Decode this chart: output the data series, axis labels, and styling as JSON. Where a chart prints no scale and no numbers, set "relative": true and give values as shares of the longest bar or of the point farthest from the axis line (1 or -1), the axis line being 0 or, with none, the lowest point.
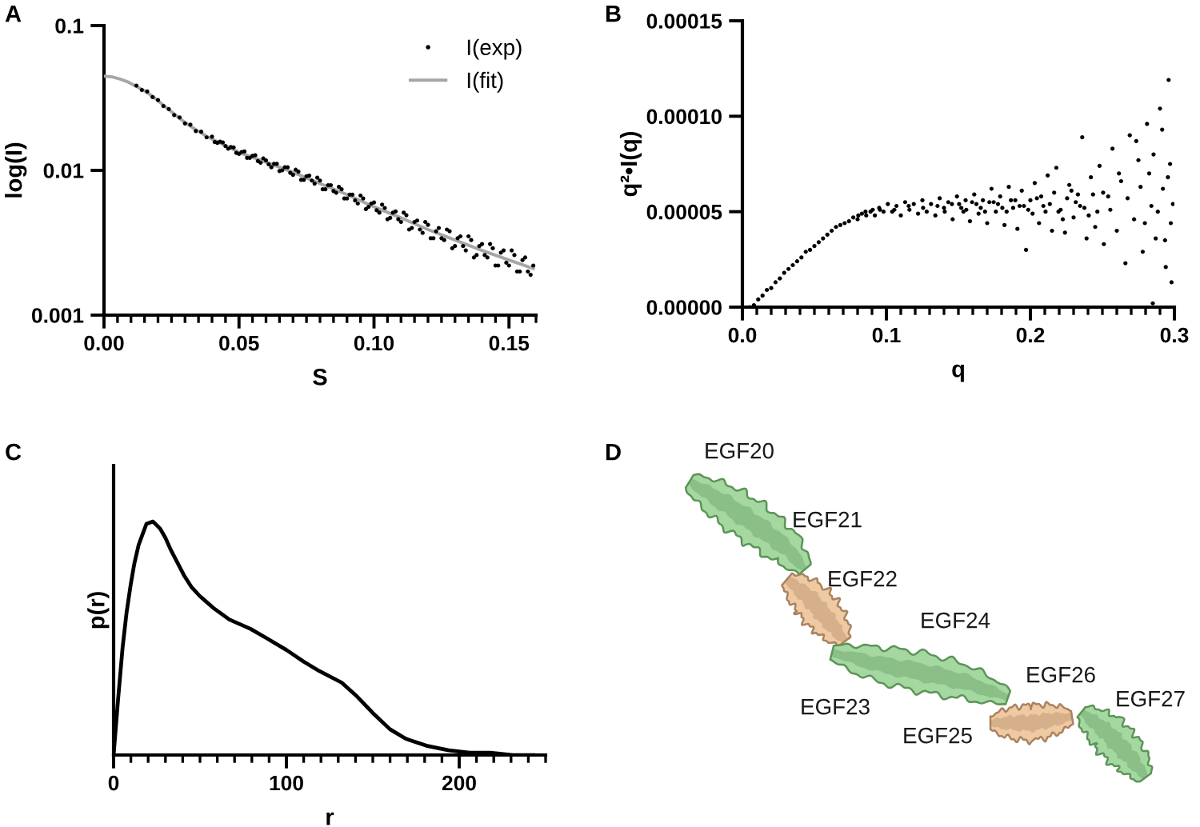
{
  "chart_data": [
    {
      "type": "scatter",
      "title": "A",
      "xlabel": "S",
      "ylabel": "log(I)",
      "log": "y",
      "legend": "top right",
      "xlim": [
        0,
        0.16
      ],
      "ylim": [
        0.001,
        0.1
      ],
      "xticks": [
        {
          "value": 0,
          "label": "0.00"
        },
        {
          "value": 0.005,
          "label": null
        },
        {
          "value": 0.01,
          "label": null
        },
        {
          "value": 0.015,
          "label": null
        },
        {
          "value": 0.02,
          "label": null
        },
        {
          "value": 0.025,
          "label": null
        },
        {
          "value": 0.03,
          "label": null
        },
        {
          "value": 0.035,
          "label": null
        },
        {
          "value": 0.04,
          "label": null
        },
        {
          "value": 0.045,
          "label": null
        },
        {
          "value": 0.05,
          "label": "0.05"
        },
        {
          "value": 0.055,
          "label": null
        },
        {
          "value": 0.06,
          "label": null
        },
        {
          "value": 0.065,
          "label": null
        },
        {
          "value": 0.07,
          "label": null
        },
        {
          "value": 0.075,
          "label": null
        },
        {
          "value": 0.08,
          "label": null
        },
        {
          "value": 0.085,
          "label": null
        },
        {
          "value": 0.09,
          "label": null
        },
        {
          "value": 0.095,
          "label": null
        },
        {
          "value": 0.1,
          "label": "0.10"
        },
        {
          "value": 0.105,
          "label": null
        },
        {
          "value": 0.11,
          "label": null
        },
        {
          "value": 0.115,
          "label": null
        },
        {
          "value": 0.12,
          "label": null
        },
        {
          "value": 0.125,
          "label": null
        },
        {
          "value": 0.13,
          "label": null
        },
        {
          "value": 0.135,
          "label": null
        },
        {
          "value": 0.14,
          "label": null
        },
        {
          "value": 0.145,
          "label": null
        },
        {
          "value": 0.15,
          "label": "0.15"
        },
        {
          "value": 0.155,
          "label": null
        },
        {
          "value": 0.16,
          "label": null
        }
      ],
      "yticks": [
        0.001,
        0.01,
        0.1
      ],
      "series": [
        {
          "name": "I(exp)",
          "type": "scatter",
          "color": "#000000",
          "marker": "circle",
          "x": [
            0.012,
            0.014,
            0.016,
            0.018,
            0.02,
            0.022,
            0.024,
            0.026,
            0.028,
            0.03,
            0.032,
            0.034,
            0.036,
            0.038,
            0.04,
            0.042,
            0.044,
            0.046,
            0.048,
            0.05,
            0.052,
            0.054,
            0.056,
            0.058,
            0.06,
            0.062,
            0.064,
            0.066,
            0.068,
            0.07,
            0.072,
            0.074,
            0.076,
            0.078,
            0.08,
            0.082,
            0.084,
            0.086,
            0.088,
            0.09,
            0.092,
            0.094,
            0.096,
            0.098,
            0.1,
            0.102,
            0.104,
            0.106,
            0.108,
            0.11,
            0.112,
            0.114,
            0.116,
            0.118,
            0.12,
            0.122,
            0.124,
            0.126,
            0.128,
            0.13,
            0.132,
            0.134,
            0.136,
            0.138,
            0.14,
            0.142,
            0.144,
            0.146,
            0.148,
            0.15,
            0.152,
            0.154,
            0.156,
            0.158,
            0.159,
            0.041,
            0.043,
            0.045,
            0.047,
            0.049,
            0.051,
            0.053,
            0.055,
            0.057,
            0.059,
            0.061,
            0.063,
            0.065,
            0.067,
            0.069,
            0.071,
            0.073,
            0.075,
            0.077,
            0.079,
            0.081,
            0.083,
            0.085,
            0.087,
            0.089,
            0.091,
            0.093,
            0.095,
            0.097,
            0.099,
            0.101,
            0.103,
            0.105,
            0.107,
            0.109,
            0.111,
            0.113,
            0.115,
            0.117,
            0.119,
            0.121,
            0.123,
            0.125,
            0.127,
            0.129,
            0.131,
            0.133,
            0.135,
            0.137,
            0.139,
            0.141,
            0.143,
            0.145,
            0.147,
            0.149,
            0.151,
            0.153,
            0.155,
            0.157
          ],
          "values": [
            0.0385,
            0.0359,
            0.0351,
            0.0321,
            0.0306,
            0.0278,
            0.0265,
            0.0241,
            0.0232,
            0.0211,
            0.0207,
            0.0187,
            0.0185,
            0.0169,
            0.0171,
            0.0155,
            0.0156,
            0.0141,
            0.0144,
            0.013,
            0.0135,
            0.0122,
            0.0127,
            0.0113,
            0.0117,
            0.0105,
            0.0111,
            0.01,
            0.0105,
            0.0093,
            0.0098,
            0.0086,
            0.0092,
            0.0081,
            0.0085,
            0.0074,
            0.0079,
            0.007,
            0.0074,
            0.0064,
            0.0068,
            0.0059,
            0.0064,
            0.0056,
            0.006,
            0.0051,
            0.0055,
            0.0047,
            0.0052,
            0.0044,
            0.0049,
            0.004,
            0.0045,
            0.0037,
            0.0042,
            0.0034,
            0.004,
            0.0033,
            0.0038,
            0.003,
            0.0035,
            0.0028,
            0.0033,
            0.0026,
            0.0031,
            0.0025,
            0.0029,
            0.0022,
            0.0028,
            0.0022,
            0.0026,
            0.002,
            0.0025,
            0.0019,
            0.0022,
            0.0157,
            0.0158,
            0.0147,
            0.0145,
            0.0132,
            0.0134,
            0.0122,
            0.0126,
            0.0116,
            0.0121,
            0.011,
            0.0111,
            0.0099,
            0.0105,
            0.0096,
            0.0101,
            0.0086,
            0.0091,
            0.0085,
            0.0089,
            0.0074,
            0.0079,
            0.0072,
            0.0077,
            0.0064,
            0.0068,
            0.0062,
            0.0067,
            0.0054,
            0.0059,
            0.0053,
            0.0058,
            0.0046,
            0.0051,
            0.0046,
            0.0051,
            0.0039,
            0.0044,
            0.0039,
            0.0044,
            0.0034,
            0.0038,
            0.0034,
            0.0039,
            0.0029,
            0.0034,
            0.003,
            0.0035,
            0.0025,
            0.003,
            0.0026,
            0.0031,
            0.0022,
            0.0027,
            0.0023,
            0.0028,
            0.002,
            0.0024,
            0.002
          ]
        },
        {
          "name": "I(fit)",
          "type": "line",
          "color": "#a6a6a6",
          "marker": "none",
          "x": [
            0,
            0.003,
            0.006,
            0.009,
            0.012,
            0.015,
            0.018,
            0.021,
            0.024,
            0.027,
            0.03,
            0.034,
            0.038,
            0.042,
            0.046,
            0.05,
            0.06,
            0.07,
            0.08,
            0.09,
            0.1,
            0.11,
            0.12,
            0.13,
            0.14,
            0.15,
            0.159
          ],
          "values": [
            0.0447,
            0.0442,
            0.0427,
            0.0407,
            0.038,
            0.0355,
            0.0324,
            0.0292,
            0.0263,
            0.0237,
            0.0214,
            0.0191,
            0.0172,
            0.0158,
            0.0145,
            0.0133,
            0.0114,
            0.0097,
            0.0081,
            0.0068,
            0.0056,
            0.0047,
            0.0039,
            0.0033,
            0.0028,
            0.0024,
            0.0021
          ]
        }
      ]
    },
    {
      "type": "scatter",
      "title": "B",
      "xlabel": "q",
      "ylabel": "q²•I(q)",
      "xlim": [
        0,
        0.3
      ],
      "ylim": [
        0,
        0.00015
      ],
      "xticks": [
        {
          "value": 0,
          "label": "0.0"
        },
        {
          "value": 0.01,
          "label": null
        },
        {
          "value": 0.02,
          "label": null
        },
        {
          "value": 0.03,
          "label": null
        },
        {
          "value": 0.04,
          "label": null
        },
        {
          "value": 0.05,
          "label": null
        },
        {
          "value": 0.06,
          "label": null
        },
        {
          "value": 0.07,
          "label": null
        },
        {
          "value": 0.08,
          "label": null
        },
        {
          "value": 0.09,
          "label": null
        },
        {
          "value": 0.1,
          "label": "0.1"
        },
        {
          "value": 0.11,
          "label": null
        },
        {
          "value": 0.12,
          "label": null
        },
        {
          "value": 0.13,
          "label": null
        },
        {
          "value": 0.14,
          "label": null
        },
        {
          "value": 0.15,
          "label": null
        },
        {
          "value": 0.16,
          "label": null
        },
        {
          "value": 0.17,
          "label": null
        },
        {
          "value": 0.18,
          "label": null
        },
        {
          "value": 0.19,
          "label": null
        },
        {
          "value": 0.2,
          "label": "0.2"
        },
        {
          "value": 0.21,
          "label": null
        },
        {
          "value": 0.22,
          "label": null
        },
        {
          "value": 0.23,
          "label": null
        },
        {
          "value": 0.24,
          "label": null
        },
        {
          "value": 0.25,
          "label": null
        },
        {
          "value": 0.26,
          "label": null
        },
        {
          "value": 0.27,
          "label": null
        },
        {
          "value": 0.28,
          "label": null
        },
        {
          "value": 0.29,
          "label": null
        },
        {
          "value": 0.3,
          "label": "0.3"
        }
      ],
      "yticks": [
        {
          "value": 0,
          "label": "0.00000"
        },
        {
          "value": 5e-05,
          "label": "0.00005"
        },
        {
          "value": 0.0001,
          "label": "0.00010"
        },
        {
          "value": 0.00015,
          "label": "0.00015"
        }
      ],
      "series": [
        {
          "color": "#000000",
          "marker": "circle",
          "x": [
            0.005,
            0.008,
            0.011,
            0.014,
            0.017,
            0.02,
            0.023,
            0.026,
            0.029,
            0.032,
            0.035,
            0.038,
            0.041,
            0.044,
            0.047,
            0.05,
            0.053,
            0.056,
            0.059,
            0.062,
            0.065,
            0.068,
            0.071,
            0.074,
            0.077,
            0.08,
            0.083,
            0.086,
            0.089,
            0.092,
            0.095,
            0.098,
            0.101,
            0.104,
            0.107,
            0.11,
            0.113,
            0.116,
            0.119,
            0.122,
            0.125,
            0.128,
            0.131,
            0.134,
            0.137,
            0.14,
            0.143,
            0.146,
            0.149,
            0.152,
            0.155,
            0.158,
            0.161,
            0.164,
            0.167,
            0.17,
            0.173,
            0.176,
            0.179,
            0.182,
            0.185,
            0.188,
            0.191,
            0.194,
            0.197,
            0.2,
            0.203,
            0.206,
            0.209,
            0.212,
            0.215,
            0.218,
            0.221,
            0.224,
            0.227,
            0.23,
            0.233,
            0.236,
            0.239,
            0.242,
            0.245,
            0.248,
            0.251,
            0.254,
            0.257,
            0.26,
            0.263,
            0.266,
            0.269,
            0.272,
            0.275,
            0.278,
            0.281,
            0.284,
            0.285,
            0.287,
            0.29,
            0.292,
            0.294,
            0.296,
            0.297,
            0.298,
            0.299,
            0.1505,
            0.1535,
            0.1595,
            0.1655,
            0.1715,
            0.1775,
            0.1835,
            0.1895,
            0.1955,
            0.2015,
            0.2075,
            0.2135,
            0.2195,
            0.2255,
            0.2315,
            0.2375,
            0.2435,
            0.2465,
            0.2505,
            0.2555,
            0.2615,
            0.2675,
            0.2735,
            0.2765,
            0.2795,
            0.2825,
            0.2855,
            0.2885,
            0.2915,
            0.2935,
            0.2955,
            0.2975,
            0.0805,
            0.0855,
            0.0905,
            0.0955,
            0.1055,
            0.1155,
            0.1255,
            0.1355,
            0.1405,
            0.1455,
            0.1555,
            0.1625,
            0.1685,
            0.1745,
            0.1805,
            0.1865,
            0.1925,
            0.1985,
            0.2045,
            0.2105,
            0.2165,
            0.2225,
            0.2285,
            0.2345,
            0.2405
          ],
          "values": [
            0,
            1e-06,
            4e-06,
            6e-06,
            9e-06,
            1e-05,
            1.3e-05,
            1.5e-05,
            1.8e-05,
            2e-05,
            2.2e-05,
            2.4e-05,
            2.6e-05,
            2.9e-05,
            3e-05,
            3.2e-05,
            3.4e-05,
            3.6e-05,
            3.8e-05,
            4e-05,
            4.2e-05,
            4.3e-05,
            4.4e-05,
            4.5e-05,
            4.7e-05,
            4.6e-05,
            4.9e-05,
            4.8e-05,
            5e-05,
            4.8e-05,
            5.2e-05,
            5e-05,
            5.4e-05,
            5e-05,
            5.3e-05,
            4.8e-05,
            5.5e-05,
            5.1e-05,
            5.4e-05,
            4.9e-05,
            5.6e-05,
            5e-05,
            5.4e-05,
            4.8e-05,
            5.7e-05,
            5.2e-05,
            5.5e-05,
            4.6e-05,
            5.8e-05,
            5.2e-05,
            5.6e-05,
            4.5e-05,
            5.9e-05,
            4.9e-05,
            5.6e-05,
            4.4e-05,
            6.2e-05,
            5e-05,
            5.8e-05,
            4.3e-05,
            6.3e-05,
            5.2e-05,
            4.1e-05,
            6.1e-05,
            3e-05,
            5.6e-05,
            6.5e-05,
            4.4e-05,
            5.3e-05,
            6.9e-05,
            4e-05,
            7.3e-05,
            5.1e-05,
            3.9e-05,
            6.4e-05,
            4.7e-05,
            5.9e-05,
            8.9e-05,
            3.6e-05,
            6.8e-05,
            4.2e-05,
            7.4e-05,
            3.3e-05,
            5.8e-05,
            8.3e-05,
            4e-05,
            6.6e-05,
            2.3e-05,
            9e-05,
            4.6e-05,
            7.7e-05,
            2.9e-05,
            9.6e-05,
            5.3e-05,
            2e-06,
            3.6e-05,
            0.000104,
            6.2e-05,
            2.1e-05,
            0.000119,
            7.5e-05,
            1.3e-05,
            5.4e-05,
            5.4e-05,
            5e-05,
            5.5e-05,
            5.2e-05,
            5.5e-05,
            5.4e-05,
            5e-05,
            5.6e-05,
            5.3e-05,
            4.9e-05,
            5.8e-05,
            5.4e-05,
            5e-05,
            5.7e-05,
            5.5e-05,
            5.2e-05,
            5.9e-05,
            5e-05,
            6e-05,
            5.1e-05,
            7e-05,
            5.7e-05,
            8.7e-05,
            6.3e-05,
            4.4e-05,
            7e-05,
            8e-05,
            5e-05,
            9.3e-05,
            3.5e-05,
            6.8e-05,
            4.4e-05,
            4.8e-05,
            5e-05,
            5.1e-05,
            5.1e-05,
            5.1e-05,
            5.3e-05,
            5.2e-05,
            5.3e-05,
            5e-05,
            5.4e-05,
            5.1e-05,
            5.4e-05,
            5e-05,
            5.5e-05,
            5.2e-05,
            5.6e-05,
            5.3e-05,
            5.1e-05,
            5.7e-05,
            5e-05,
            6e-05,
            4.6e-05,
            6.1e-05,
            5.3e-05,
            4.8e-05
          ]
        }
      ]
    },
    {
      "type": "line",
      "title": "C",
      "xlabel": "r",
      "ylabel": "p(r)",
      "relative": true,
      "xlim": [
        0,
        250
      ],
      "xticks": [
        0,
        {
          "value": 10,
          "label": null
        },
        {
          "value": 20,
          "label": null
        },
        {
          "value": 30,
          "label": null
        },
        {
          "value": 40,
          "label": null
        },
        {
          "value": 50,
          "label": null
        },
        {
          "value": 60,
          "label": null
        },
        {
          "value": 70,
          "label": null
        },
        {
          "value": 80,
          "label": null
        },
        {
          "value": 90,
          "label": null
        },
        100,
        {
          "value": 110,
          "label": null
        },
        {
          "value": 120,
          "label": null
        },
        {
          "value": 130,
          "label": null
        },
        {
          "value": 140,
          "label": null
        },
        {
          "value": 150,
          "label": null
        },
        {
          "value": 160,
          "label": null
        },
        {
          "value": 170,
          "label": null
        },
        {
          "value": 180,
          "label": null
        },
        {
          "value": 190,
          "label": null
        },
        200,
        {
          "value": 210,
          "label": null
        },
        {
          "value": 220,
          "label": null
        },
        {
          "value": 230,
          "label": null
        },
        {
          "value": 240,
          "label": null
        },
        {
          "value": 250,
          "label": null
        }
      ],
      "x": [
        0,
        2.5,
        5.2,
        7.5,
        9.9,
        12,
        14.5,
        17,
        19,
        22.8,
        26.9,
        30,
        33,
        36.5,
        40.7,
        45,
        50,
        57.7,
        67,
        79.3,
        88.6,
        100,
        110,
        119,
        132,
        141,
        150,
        160,
        169,
        181,
        194,
        206,
        218,
        231,
        243
      ],
      "series": [
        {
          "color": "#000000",
          "values": [
            0,
            0.23,
            0.46,
            0.61,
            0.73,
            0.82,
            0.9,
            0.95,
            0.99,
            1,
            0.97,
            0.93,
            0.88,
            0.83,
            0.77,
            0.72,
            0.68,
            0.63,
            0.58,
            0.54,
            0.5,
            0.45,
            0.4,
            0.36,
            0.31,
            0.25,
            0.18,
            0.11,
            0.07,
            0.04,
            0.02,
            0.01,
            0.01,
            0,
            0
          ]
        }
      ]
    },
    {
      "type": "other",
      "title": "D",
      "annotations": [
        "EGF20",
        "EGF21",
        "EGF22",
        "EGF23",
        "EGF24",
        "EGF25",
        "EGF26",
        "EGF27"
      ]
    }
  ]
}
